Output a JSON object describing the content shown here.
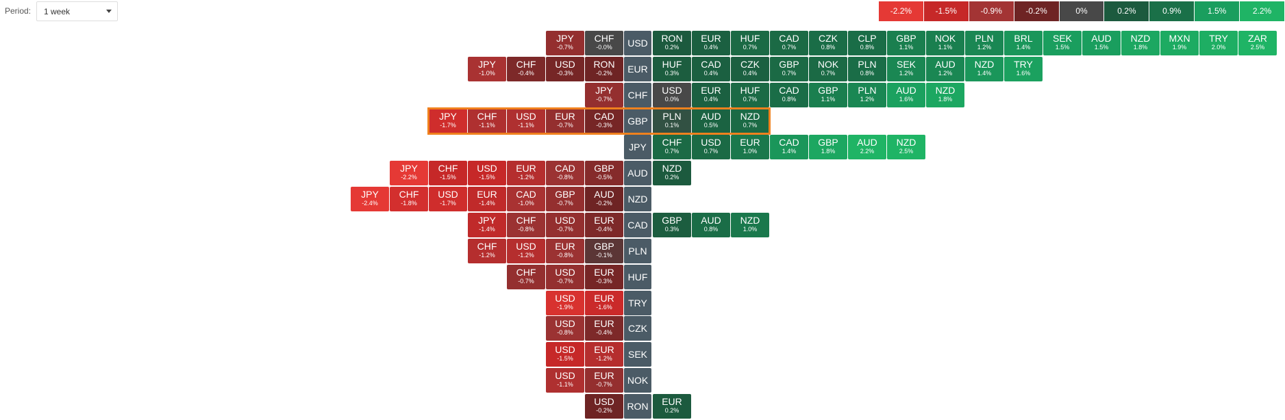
{
  "toolbar": {
    "period_label": "Period:",
    "period_value": "1 week"
  },
  "legend": [
    {
      "label": "-2.2%",
      "color": "#e53935"
    },
    {
      "label": "-1.5%",
      "color": "#c62828"
    },
    {
      "label": "-0.9%",
      "color": "#a33434"
    },
    {
      "label": "-0.2%",
      "color": "#6e2424"
    },
    {
      "label": "0%",
      "color": "#484848"
    },
    {
      "label": "0.2%",
      "color": "#1c5a3e"
    },
    {
      "label": "0.9%",
      "color": "#1a7048"
    },
    {
      "label": "1.5%",
      "color": "#1a9e5e"
    },
    {
      "label": "2.2%",
      "color": "#1fb465"
    }
  ],
  "rows": [
    {
      "base": "USD",
      "left": [
        {
          "currency": "JPY",
          "change": "-0.7%"
        },
        {
          "currency": "CHF",
          "change": "-0.0%"
        }
      ],
      "right": [
        {
          "currency": "RON",
          "change": "0.2%"
        },
        {
          "currency": "EUR",
          "change": "0.4%"
        },
        {
          "currency": "HUF",
          "change": "0.7%"
        },
        {
          "currency": "CAD",
          "change": "0.7%"
        },
        {
          "currency": "CZK",
          "change": "0.8%"
        },
        {
          "currency": "CLP",
          "change": "0.8%"
        },
        {
          "currency": "GBP",
          "change": "1.1%"
        },
        {
          "currency": "NOK",
          "change": "1.1%"
        },
        {
          "currency": "PLN",
          "change": "1.2%"
        },
        {
          "currency": "BRL",
          "change": "1.4%"
        },
        {
          "currency": "SEK",
          "change": "1.5%"
        },
        {
          "currency": "AUD",
          "change": "1.5%"
        },
        {
          "currency": "NZD",
          "change": "1.8%"
        },
        {
          "currency": "MXN",
          "change": "1.9%"
        },
        {
          "currency": "TRY",
          "change": "2.0%"
        },
        {
          "currency": "ZAR",
          "change": "2.5%"
        }
      ]
    },
    {
      "base": "EUR",
      "left": [
        {
          "currency": "JPY",
          "change": "-1.0%"
        },
        {
          "currency": "CHF",
          "change": "-0.4%"
        },
        {
          "currency": "USD",
          "change": "-0.3%"
        },
        {
          "currency": "RON",
          "change": "-0.2%"
        }
      ],
      "right": [
        {
          "currency": "HUF",
          "change": "0.3%"
        },
        {
          "currency": "CAD",
          "change": "0.4%"
        },
        {
          "currency": "CZK",
          "change": "0.4%"
        },
        {
          "currency": "GBP",
          "change": "0.7%"
        },
        {
          "currency": "NOK",
          "change": "0.7%"
        },
        {
          "currency": "PLN",
          "change": "0.8%"
        },
        {
          "currency": "SEK",
          "change": "1.2%"
        },
        {
          "currency": "AUD",
          "change": "1.2%"
        },
        {
          "currency": "NZD",
          "change": "1.4%"
        },
        {
          "currency": "TRY",
          "change": "1.6%"
        }
      ]
    },
    {
      "base": "CHF",
      "left": [
        {
          "currency": "JPY",
          "change": "-0.7%"
        }
      ],
      "right": [
        {
          "currency": "USD",
          "change": "0.0%"
        },
        {
          "currency": "EUR",
          "change": "0.4%"
        },
        {
          "currency": "HUF",
          "change": "0.7%"
        },
        {
          "currency": "CAD",
          "change": "0.8%"
        },
        {
          "currency": "GBP",
          "change": "1.1%"
        },
        {
          "currency": "PLN",
          "change": "1.2%"
        },
        {
          "currency": "AUD",
          "change": "1.6%"
        },
        {
          "currency": "NZD",
          "change": "1.8%"
        }
      ]
    },
    {
      "base": "GBP",
      "left": [
        {
          "currency": "JPY",
          "change": "-1.7%"
        },
        {
          "currency": "CHF",
          "change": "-1.1%"
        },
        {
          "currency": "USD",
          "change": "-1.1%"
        },
        {
          "currency": "EUR",
          "change": "-0.7%"
        },
        {
          "currency": "CAD",
          "change": "-0.3%"
        }
      ],
      "right": [
        {
          "currency": "PLN",
          "change": "0.1%"
        },
        {
          "currency": "AUD",
          "change": "0.5%"
        },
        {
          "currency": "NZD",
          "change": "0.7%"
        }
      ]
    },
    {
      "base": "JPY",
      "left": [],
      "right": [
        {
          "currency": "CHF",
          "change": "0.7%"
        },
        {
          "currency": "USD",
          "change": "0.7%"
        },
        {
          "currency": "EUR",
          "change": "1.0%"
        },
        {
          "currency": "CAD",
          "change": "1.4%"
        },
        {
          "currency": "GBP",
          "change": "1.8%"
        },
        {
          "currency": "AUD",
          "change": "2.2%"
        },
        {
          "currency": "NZD",
          "change": "2.5%"
        }
      ]
    },
    {
      "base": "AUD",
      "left": [
        {
          "currency": "JPY",
          "change": "-2.2%"
        },
        {
          "currency": "CHF",
          "change": "-1.5%"
        },
        {
          "currency": "USD",
          "change": "-1.5%"
        },
        {
          "currency": "EUR",
          "change": "-1.2%"
        },
        {
          "currency": "CAD",
          "change": "-0.8%"
        },
        {
          "currency": "GBP",
          "change": "-0.5%"
        }
      ],
      "right": [
        {
          "currency": "NZD",
          "change": "0.2%"
        }
      ]
    },
    {
      "base": "NZD",
      "left": [
        {
          "currency": "JPY",
          "change": "-2.4%"
        },
        {
          "currency": "CHF",
          "change": "-1.8%"
        },
        {
          "currency": "USD",
          "change": "-1.7%"
        },
        {
          "currency": "EUR",
          "change": "-1.4%"
        },
        {
          "currency": "CAD",
          "change": "-1.0%"
        },
        {
          "currency": "GBP",
          "change": "-0.7%"
        },
        {
          "currency": "AUD",
          "change": "-0.2%"
        }
      ],
      "right": []
    },
    {
      "base": "CAD",
      "left": [
        {
          "currency": "JPY",
          "change": "-1.4%"
        },
        {
          "currency": "CHF",
          "change": "-0.8%"
        },
        {
          "currency": "USD",
          "change": "-0.7%"
        },
        {
          "currency": "EUR",
          "change": "-0.4%"
        }
      ],
      "right": [
        {
          "currency": "GBP",
          "change": "0.3%"
        },
        {
          "currency": "AUD",
          "change": "0.8%"
        },
        {
          "currency": "NZD",
          "change": "1.0%"
        }
      ]
    },
    {
      "base": "PLN",
      "left": [
        {
          "currency": "CHF",
          "change": "-1.2%"
        },
        {
          "currency": "USD",
          "change": "-1.2%"
        },
        {
          "currency": "EUR",
          "change": "-0.8%"
        },
        {
          "currency": "GBP",
          "change": "-0.1%"
        }
      ],
      "right": []
    },
    {
      "base": "HUF",
      "left": [
        {
          "currency": "CHF",
          "change": "-0.7%"
        },
        {
          "currency": "USD",
          "change": "-0.7%"
        },
        {
          "currency": "EUR",
          "change": "-0.3%"
        }
      ],
      "right": []
    },
    {
      "base": "TRY",
      "left": [
        {
          "currency": "USD",
          "change": "-1.9%"
        },
        {
          "currency": "EUR",
          "change": "-1.6%"
        }
      ],
      "right": []
    },
    {
      "base": "CZK",
      "left": [
        {
          "currency": "USD",
          "change": "-0.8%"
        },
        {
          "currency": "EUR",
          "change": "-0.4%"
        }
      ],
      "right": []
    },
    {
      "base": "SEK",
      "left": [
        {
          "currency": "USD",
          "change": "-1.5%"
        },
        {
          "currency": "EUR",
          "change": "-1.2%"
        }
      ],
      "right": []
    },
    {
      "base": "NOK",
      "left": [
        {
          "currency": "USD",
          "change": "-1.1%"
        },
        {
          "currency": "EUR",
          "change": "-0.7%"
        }
      ],
      "right": []
    },
    {
      "base": "RON",
      "left": [
        {
          "currency": "USD",
          "change": "-0.2%"
        }
      ],
      "right": [
        {
          "currency": "EUR",
          "change": "0.2%"
        }
      ]
    }
  ]
}
